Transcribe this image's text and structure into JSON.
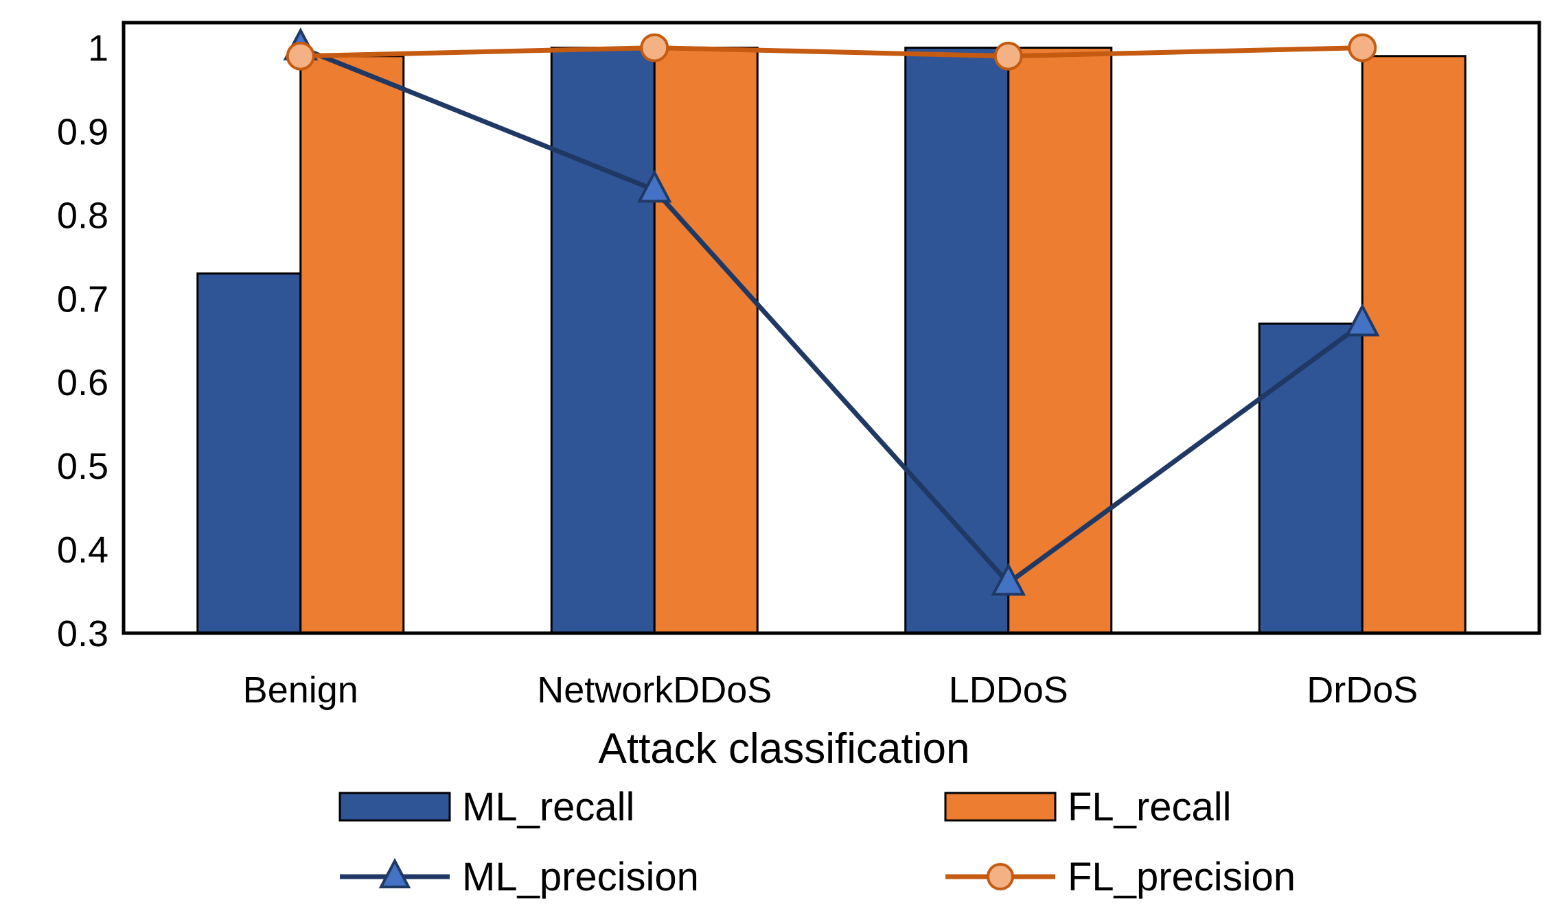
{
  "chart_data": {
    "type": "bar",
    "title": "",
    "xlabel": "Attack classification",
    "ylabel": "",
    "ylim": [
      0.3,
      1.03
    ],
    "yticks": [
      "0.3",
      "0.4",
      "0.5",
      "0.6",
      "0.7",
      "0.8",
      "0.9",
      "1"
    ],
    "categories": [
      "Benign",
      "NetworkDDoS",
      "LDDoS",
      "DrDoS"
    ],
    "bar_series": [
      {
        "name": "ML_recall",
        "color": "#2F5597",
        "values": [
          0.73,
          1.0,
          1.0,
          0.67
        ]
      },
      {
        "name": "FL_recall",
        "color": "#ED7D31",
        "values": [
          0.99,
          1.0,
          1.0,
          0.99
        ]
      }
    ],
    "line_series": [
      {
        "name": "ML_precision",
        "color": "#203864",
        "marker": "triangle",
        "marker_fill": "#4472C4",
        "values": [
          1.0,
          0.83,
          0.36,
          0.67
        ]
      },
      {
        "name": "FL_precision",
        "color": "#C55A11",
        "marker": "circle",
        "marker_fill": "#F4B183",
        "values": [
          0.99,
          1.0,
          0.99,
          1.0
        ]
      }
    ],
    "legend": {
      "placement": "bottom",
      "items": [
        "ML_recall",
        "FL_recall",
        "ML_precision",
        "FL_precision"
      ]
    },
    "grid": false
  }
}
